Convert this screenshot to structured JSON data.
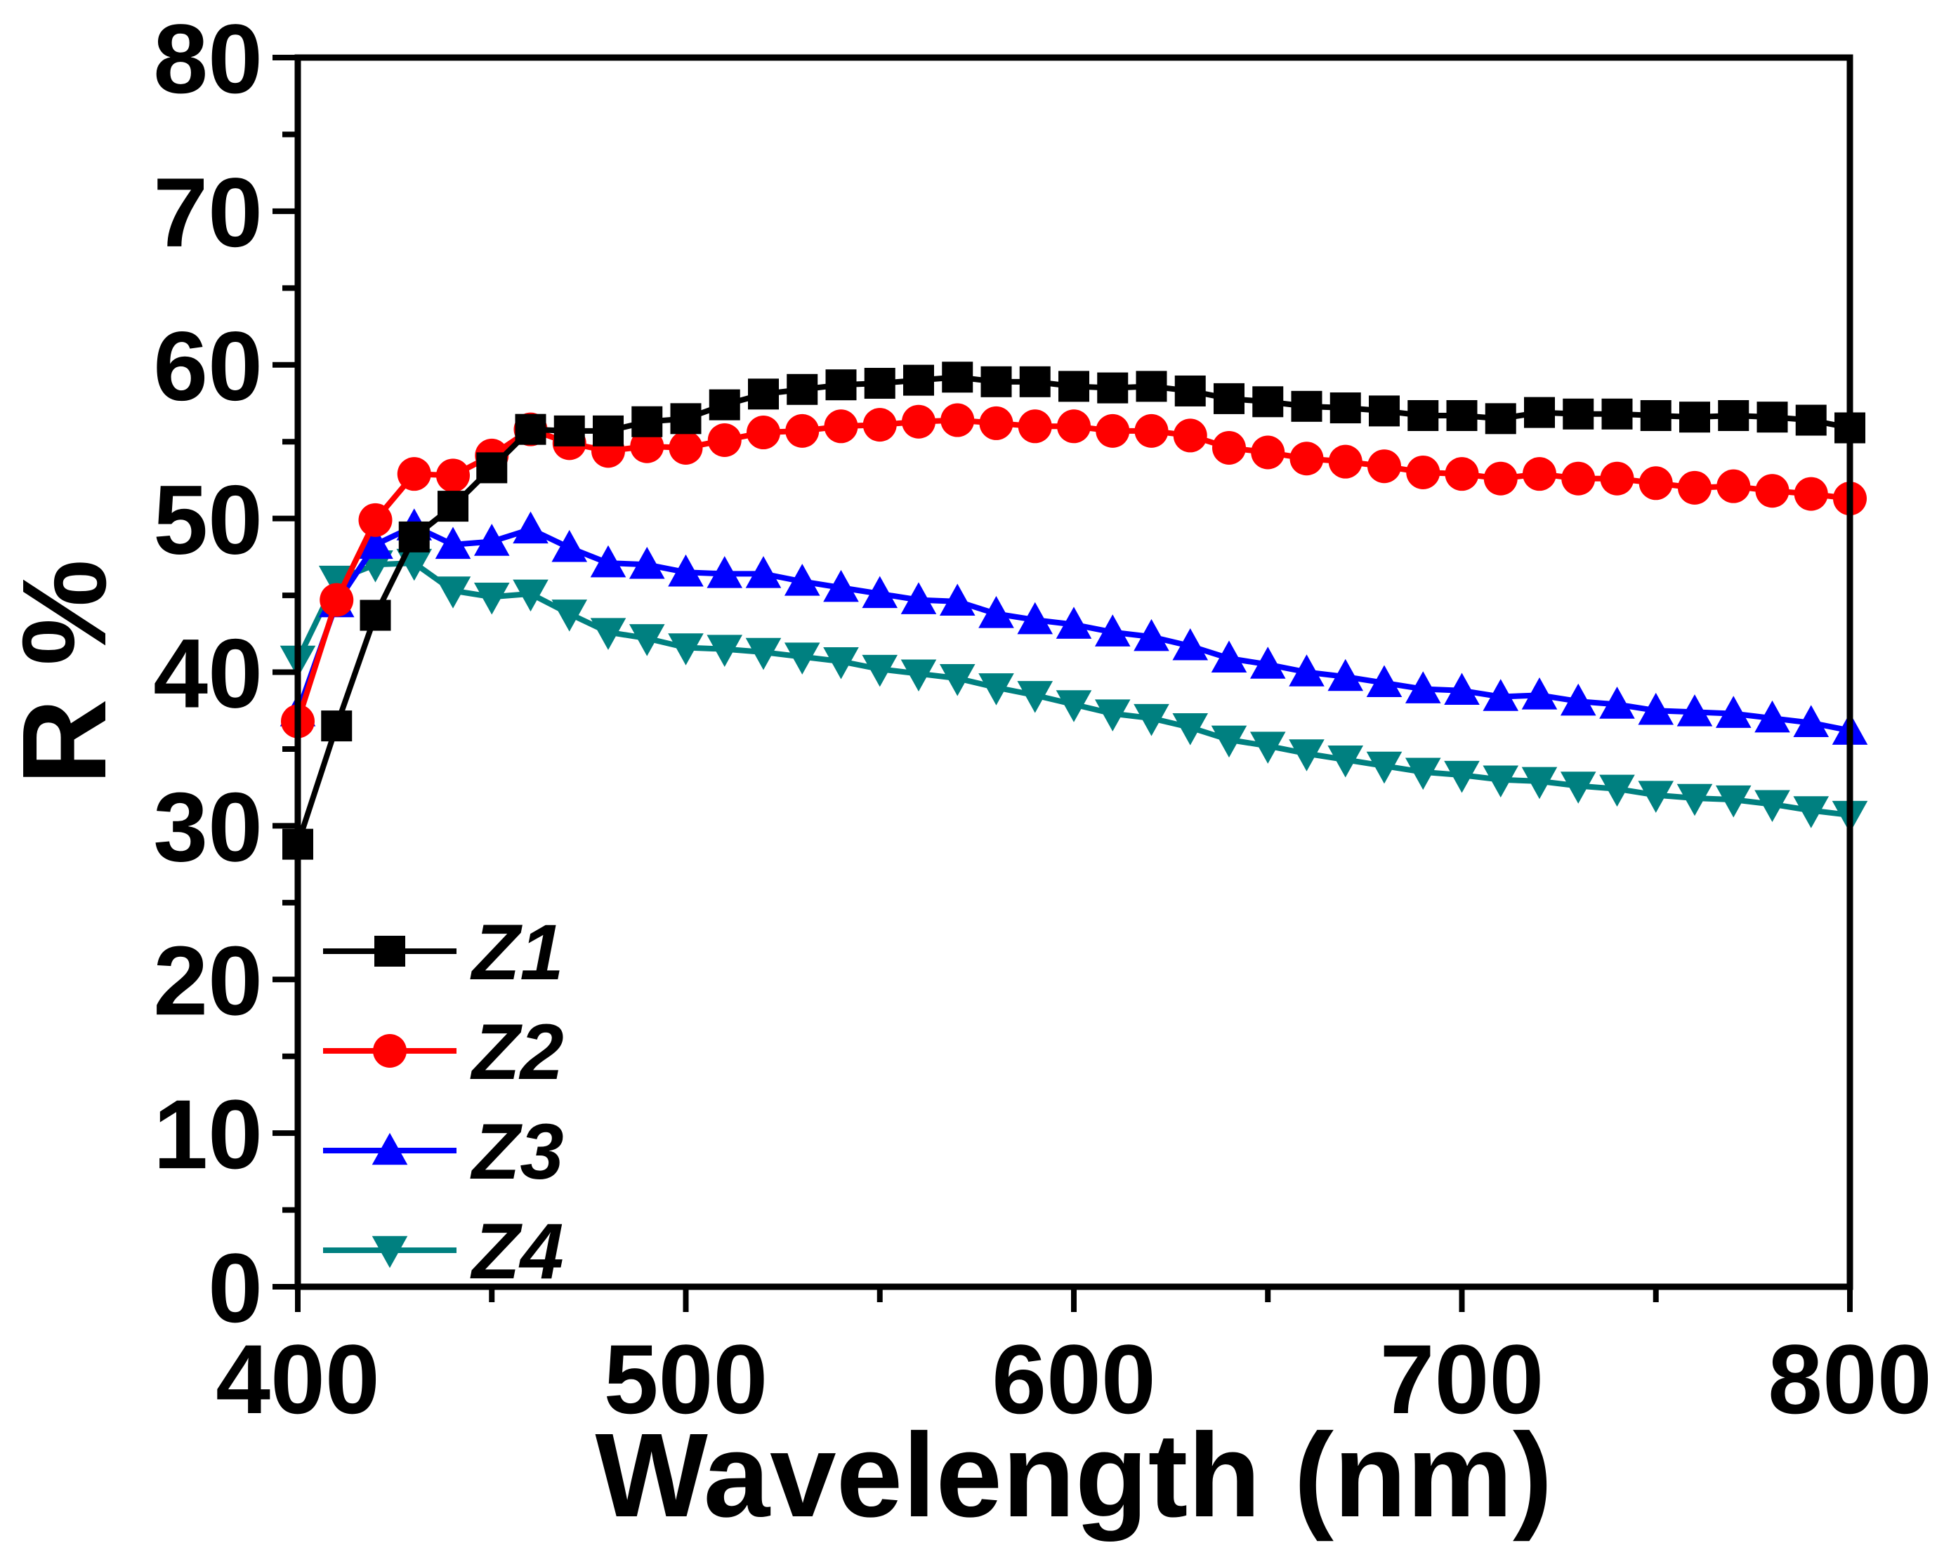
{
  "chart_data": {
    "type": "line",
    "title": "",
    "xlabel": "Wavelength (nm)",
    "ylabel": "R %",
    "xlim": [
      400,
      800
    ],
    "ylim": [
      0,
      80
    ],
    "xticks": [
      400,
      500,
      600,
      700,
      800
    ],
    "yticks": [
      0,
      10,
      20,
      30,
      40,
      50,
      60,
      70,
      80
    ],
    "grid": false,
    "legend_position": "bottom-left",
    "x": [
      400,
      410,
      420,
      430,
      440,
      450,
      460,
      470,
      480,
      490,
      500,
      510,
      520,
      530,
      540,
      550,
      560,
      570,
      580,
      590,
      600,
      610,
      620,
      630,
      640,
      650,
      660,
      670,
      680,
      690,
      700,
      710,
      720,
      730,
      740,
      750,
      760,
      770,
      780,
      790,
      800
    ],
    "series": [
      {
        "name": "Z1",
        "color": "#000000",
        "marker": "square",
        "values": [
          28.8,
          36.5,
          43.7,
          48.8,
          50.8,
          53.3,
          55.8,
          55.7,
          55.7,
          56.3,
          56.5,
          57.4,
          58.1,
          58.4,
          58.7,
          58.8,
          59.0,
          59.2,
          58.9,
          58.9,
          58.6,
          58.5,
          58.6,
          58.3,
          57.8,
          57.6,
          57.3,
          57.2,
          57.0,
          56.7,
          56.7,
          56.5,
          56.9,
          56.8,
          56.8,
          56.7,
          56.6,
          56.7,
          56.6,
          56.4,
          55.9
        ]
      },
      {
        "name": "Z2",
        "color": "#ff0000",
        "marker": "circle",
        "values": [
          36.8,
          44.7,
          49.9,
          52.9,
          52.8,
          54.1,
          55.8,
          54.9,
          54.4,
          54.7,
          54.6,
          55.1,
          55.6,
          55.7,
          56.0,
          56.1,
          56.3,
          56.4,
          56.2,
          56.0,
          56.0,
          55.7,
          55.7,
          55.4,
          54.6,
          54.3,
          53.9,
          53.7,
          53.4,
          53.0,
          52.9,
          52.6,
          52.9,
          52.6,
          52.6,
          52.3,
          52.0,
          52.1,
          51.8,
          51.6,
          51.3
        ]
      },
      {
        "name": "Z3",
        "color": "#0000ff",
        "marker": "triangle-up",
        "values": [
          37.4,
          44.5,
          48.3,
          49.5,
          48.3,
          48.5,
          49.3,
          48.1,
          47.1,
          47.0,
          46.5,
          46.4,
          46.4,
          45.9,
          45.5,
          45.1,
          44.7,
          44.6,
          43.8,
          43.4,
          43.1,
          42.6,
          42.3,
          41.7,
          40.9,
          40.5,
          40.0,
          39.7,
          39.3,
          38.9,
          38.8,
          38.4,
          38.5,
          38.1,
          37.9,
          37.5,
          37.4,
          37.3,
          37.0,
          36.7,
          36.2
        ]
      },
      {
        "name": "Z4",
        "color": "#008080",
        "marker": "triangle-down",
        "values": [
          40.8,
          46.0,
          47.0,
          47.1,
          45.3,
          44.9,
          45.1,
          43.8,
          42.6,
          42.2,
          41.6,
          41.5,
          41.3,
          41.0,
          40.7,
          40.2,
          39.9,
          39.6,
          39.0,
          38.5,
          37.9,
          37.3,
          37.0,
          36.4,
          35.6,
          35.2,
          34.7,
          34.3,
          33.9,
          33.5,
          33.3,
          33.0,
          32.9,
          32.6,
          32.4,
          32.0,
          31.8,
          31.7,
          31.4,
          31.0,
          30.7
        ]
      }
    ]
  }
}
